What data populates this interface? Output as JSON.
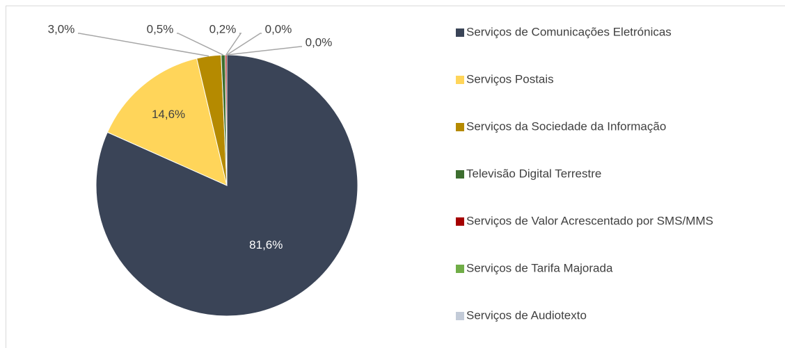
{
  "chart_data": {
    "type": "pie",
    "categories": [
      "Serviços de Comunicações Eletrónicas",
      "Serviços Postais",
      "Serviços da Sociedade da Informação",
      "Televisão Digital Terrestre",
      "Serviços de Valor Acrescentado por SMS/MMS",
      "Serviços de Tarifa Majorada",
      "Serviços de Audiotexto"
    ],
    "values": [
      81.6,
      14.6,
      3.0,
      0.5,
      0.2,
      0.0,
      0.0
    ],
    "value_labels": [
      "81,6%",
      "14,6%",
      "3,0%",
      "0,5%",
      "0,2%",
      "0,0%",
      "0,0%"
    ],
    "colors": [
      "#3a4457",
      "#ffd55a",
      "#b58a00",
      "#3d6e2f",
      "#a50000",
      "#70ad47",
      "#c3cbd8"
    ],
    "legend": "right"
  }
}
